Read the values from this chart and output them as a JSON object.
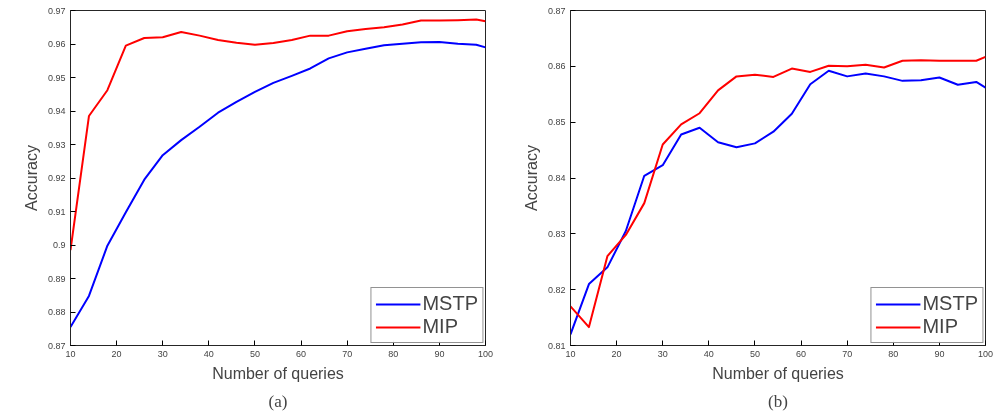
{
  "chart_data": [
    {
      "type": "line",
      "xlabel": "Number of queries",
      "ylabel": "Accuracy",
      "annotations": [
        "(a)"
      ],
      "legend": "bottom right",
      "grid": false,
      "xlim": [
        10,
        100
      ],
      "ylim": [
        0.87,
        0.97
      ],
      "xticks": [
        10,
        20,
        30,
        40,
        50,
        60,
        70,
        80,
        90,
        100
      ],
      "yticks": [
        0.87,
        0.88,
        0.89,
        0.9,
        0.91,
        0.92,
        0.93,
        0.94,
        0.95,
        0.96,
        0.97
      ],
      "x": [
        10,
        14,
        18,
        22,
        26,
        30,
        34,
        38,
        42,
        46,
        50,
        54,
        58,
        62,
        66,
        70,
        74,
        78,
        82,
        86,
        90,
        94,
        98,
        100
      ],
      "series": [
        {
          "name": "MSTP",
          "color": "#0000ff",
          "values": [
            0.8755,
            0.8848,
            0.8998,
            0.9098,
            0.9195,
            0.9268,
            0.9313,
            0.9353,
            0.9395,
            0.9427,
            0.9457,
            0.9484,
            0.9505,
            0.9527,
            0.9557,
            0.9575,
            0.9586,
            0.9596,
            0.9601,
            0.9605,
            0.9606,
            0.9601,
            0.9598,
            0.959
          ]
        },
        {
          "name": "MIP",
          "color": "#ff0000",
          "values": [
            0.8985,
            0.9385,
            0.9462,
            0.9595,
            0.9618,
            0.962,
            0.9636,
            0.9625,
            0.9612,
            0.9604,
            0.9598,
            0.9603,
            0.9612,
            0.9625,
            0.9625,
            0.9638,
            0.9645,
            0.965,
            0.9658,
            0.967,
            0.967,
            0.9671,
            0.9673,
            0.9668
          ]
        }
      ]
    },
    {
      "type": "line",
      "xlabel": "Number of queries",
      "ylabel": "Accuracy",
      "annotations": [
        "(b)"
      ],
      "legend": "bottom right",
      "grid": false,
      "xlim": [
        10,
        100
      ],
      "ylim": [
        0.81,
        0.87
      ],
      "xticks": [
        10,
        20,
        30,
        40,
        50,
        60,
        70,
        80,
        90,
        100
      ],
      "yticks": [
        0.81,
        0.82,
        0.83,
        0.84,
        0.85,
        0.86,
        0.87
      ],
      "x": [
        10,
        14,
        18,
        22,
        26,
        30,
        34,
        38,
        42,
        46,
        50,
        54,
        58,
        62,
        66,
        70,
        74,
        78,
        82,
        86,
        90,
        94,
        98,
        100
      ],
      "series": [
        {
          "name": "MSTP",
          "color": "#0000ff",
          "values": [
            0.812,
            0.821,
            0.824,
            0.8305,
            0.8404,
            0.8423,
            0.8478,
            0.849,
            0.8464,
            0.8455,
            0.8462,
            0.8483,
            0.8515,
            0.8568,
            0.8592,
            0.8582,
            0.8587,
            0.8582,
            0.8574,
            0.8575,
            0.858,
            0.8567,
            0.8572,
            0.8562
          ]
        },
        {
          "name": "MIP",
          "color": "#ff0000",
          "values": [
            0.817,
            0.8133,
            0.826,
            0.8298,
            0.8355,
            0.846,
            0.8496,
            0.8516,
            0.8557,
            0.8582,
            0.8585,
            0.8581,
            0.8596,
            0.859,
            0.8601,
            0.86,
            0.8603,
            0.8598,
            0.861,
            0.8611,
            0.861,
            0.861,
            0.861,
            0.8617
          ]
        }
      ]
    }
  ]
}
